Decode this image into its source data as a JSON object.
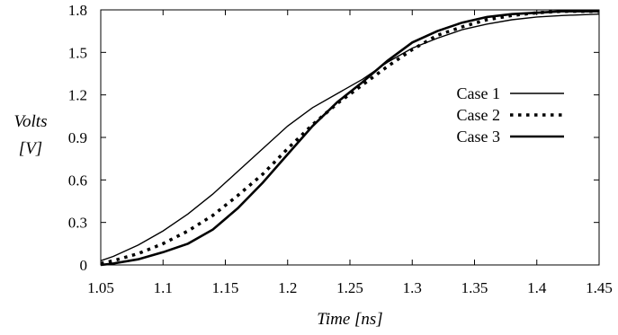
{
  "chart_data": {
    "type": "line",
    "xlabel": {
      "italic": "Time",
      "unit": "[ns]"
    },
    "ylabel": {
      "italic": "Volts",
      "unit": "[V]"
    },
    "xlim": [
      1.05,
      1.45
    ],
    "ylim": [
      0,
      1.8
    ],
    "xticks": [
      1.05,
      1.1,
      1.15,
      1.2,
      1.25,
      1.3,
      1.35,
      1.4,
      1.45
    ],
    "xtick_labels": [
      "1.05",
      "1.1",
      "1.15",
      "1.2",
      "1.25",
      "1.3",
      "1.35",
      "1.4",
      "1.45"
    ],
    "yticks": [
      0,
      0.3,
      0.6,
      0.9,
      1.2,
      1.5,
      1.8
    ],
    "ytick_labels": [
      "0",
      "0.3",
      "0.6",
      "0.9",
      "1.2",
      "1.5",
      "1.8"
    ],
    "grid": false,
    "legend_position": "right",
    "series": [
      {
        "name": "Case 1",
        "style": "solid-thin",
        "x": [
          1.05,
          1.06,
          1.08,
          1.1,
          1.12,
          1.14,
          1.16,
          1.18,
          1.2,
          1.22,
          1.24,
          1.26,
          1.28,
          1.3,
          1.32,
          1.34,
          1.36,
          1.38,
          1.4,
          1.42,
          1.45
        ],
        "y": [
          0.03,
          0.06,
          0.14,
          0.24,
          0.36,
          0.5,
          0.66,
          0.82,
          0.98,
          1.11,
          1.21,
          1.31,
          1.43,
          1.53,
          1.6,
          1.66,
          1.7,
          1.73,
          1.75,
          1.76,
          1.77
        ]
      },
      {
        "name": "Case 2",
        "style": "dotted",
        "x": [
          1.05,
          1.06,
          1.08,
          1.1,
          1.12,
          1.14,
          1.16,
          1.18,
          1.2,
          1.22,
          1.24,
          1.26,
          1.28,
          1.3,
          1.32,
          1.34,
          1.36,
          1.38,
          1.4,
          1.42,
          1.45
        ],
        "y": [
          0.01,
          0.03,
          0.08,
          0.15,
          0.24,
          0.35,
          0.49,
          0.64,
          0.82,
          0.99,
          1.14,
          1.27,
          1.4,
          1.52,
          1.62,
          1.68,
          1.73,
          1.76,
          1.78,
          1.79,
          1.79
        ]
      },
      {
        "name": "Case 3",
        "style": "solid-thick",
        "x": [
          1.05,
          1.06,
          1.08,
          1.1,
          1.12,
          1.14,
          1.16,
          1.18,
          1.2,
          1.22,
          1.24,
          1.26,
          1.28,
          1.3,
          1.32,
          1.34,
          1.36,
          1.38,
          1.4,
          1.42,
          1.45
        ],
        "y": [
          0.0,
          0.01,
          0.04,
          0.09,
          0.15,
          0.25,
          0.4,
          0.58,
          0.78,
          0.98,
          1.15,
          1.29,
          1.44,
          1.57,
          1.65,
          1.71,
          1.75,
          1.77,
          1.78,
          1.79,
          1.79
        ]
      }
    ]
  }
}
